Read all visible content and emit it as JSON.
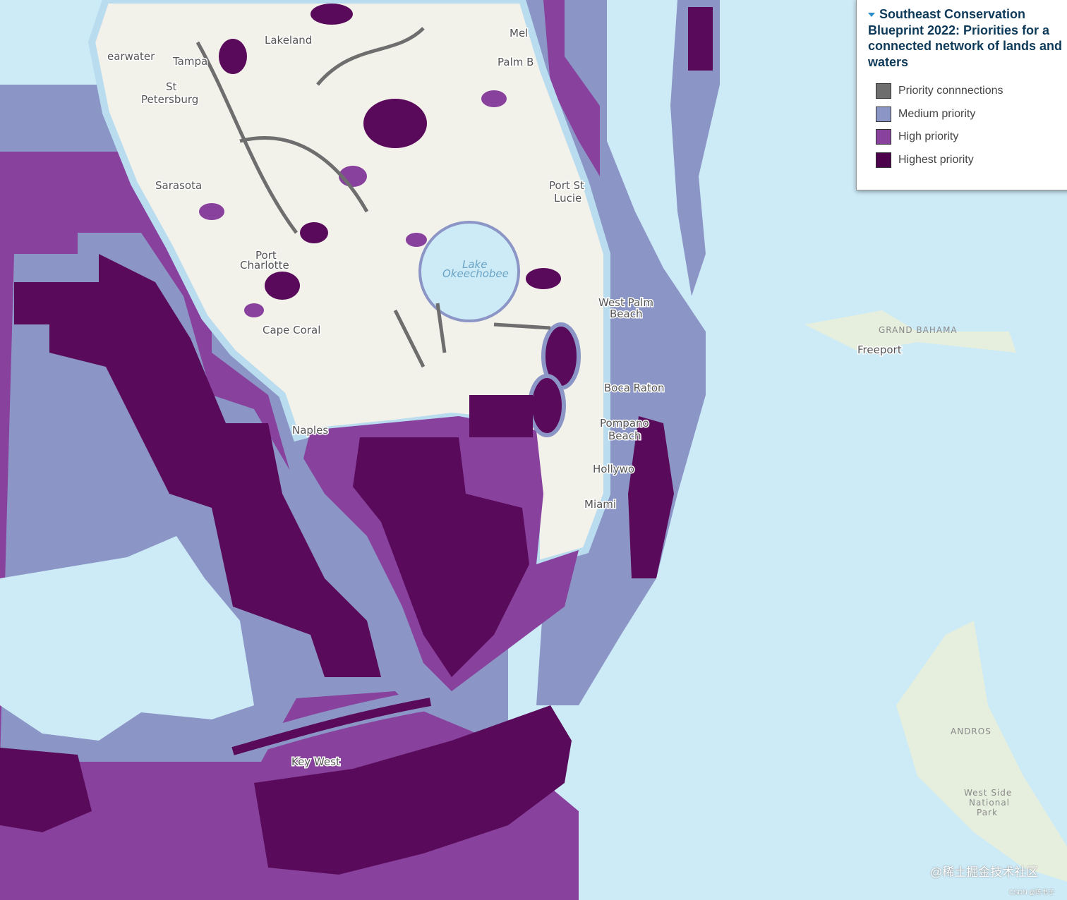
{
  "legend": {
    "title": "Southeast Conservation Blueprint 2022: Priorities for a connected network of lands and waters",
    "items": [
      {
        "label": "Priority connnections",
        "color": "#6e6e6e"
      },
      {
        "label": "Medium priority",
        "color": "#8c96c6"
      },
      {
        "label": "High priority",
        "color": "#88419d"
      },
      {
        "label": "Highest priority",
        "color": "#4d004b"
      }
    ]
  },
  "map_labels": [
    {
      "lines": [
        "earwater"
      ]
    },
    {
      "lines": [
        "Tampa"
      ]
    },
    {
      "lines": [
        "Lakeland"
      ]
    },
    {
      "lines": [
        "Mel"
      ]
    },
    {
      "lines": [
        "St",
        "Petersburg"
      ]
    },
    {
      "lines": [
        "Palm B"
      ]
    },
    {
      "lines": [
        "Sarasota"
      ]
    },
    {
      "lines": [
        "Port St",
        "Lucie"
      ]
    },
    {
      "lines": [
        "Port",
        "Charlotte"
      ]
    },
    {
      "lines": [
        "Lake",
        "Okeechobee"
      ]
    },
    {
      "lines": [
        "West Palm",
        "Beach"
      ]
    },
    {
      "lines": [
        "Cape Coral"
      ]
    },
    {
      "lines": [
        "Boca Raton"
      ]
    },
    {
      "lines": [
        "Naples"
      ]
    },
    {
      "lines": [
        "Pompano",
        "Beach"
      ]
    },
    {
      "lines": [
        "Hollywo"
      ]
    },
    {
      "lines": [
        "Miami"
      ]
    },
    {
      "lines": [
        "Key West"
      ]
    },
    {
      "lines": [
        "GRAND BAHAMA"
      ]
    },
    {
      "lines": [
        "Freeport"
      ]
    },
    {
      "lines": [
        "ANDROS"
      ]
    },
    {
      "lines": [
        "West Side",
        "National",
        "Park"
      ]
    }
  ],
  "watermark": "@稀土掘金技术社区",
  "credit": "CSDN @陈书子"
}
